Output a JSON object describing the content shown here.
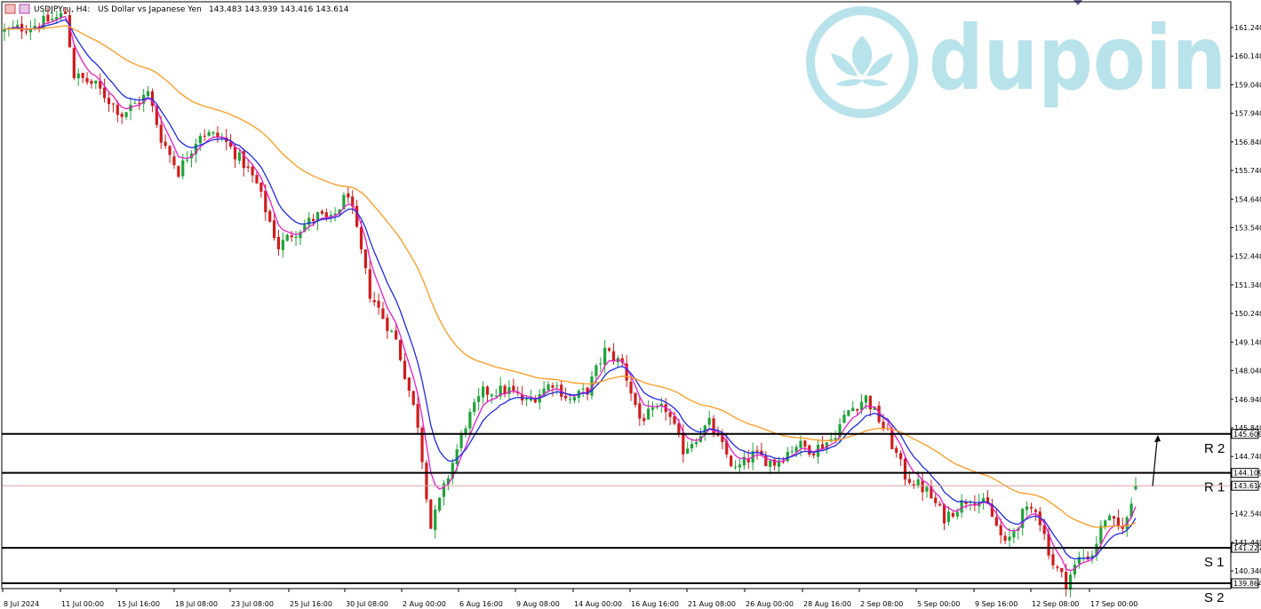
{
  "header": {
    "symbol_label": "USDJPYru, H4:",
    "description": "US Dollar vs Japanese Yen",
    "ohlc": "143.483 143.939 143.416 143.614"
  },
  "watermark": {
    "brand_text": "dupoin"
  },
  "colors": {
    "bull": "#1fa33a",
    "bear": "#d01c1c",
    "ma_fast": "#e61ec7",
    "ma_mid": "#1e2be6",
    "ma_slow": "#ff9a1e",
    "level_line": "#000000",
    "current_price_line": "#d9a0a0",
    "watermark": "#b9e3ea"
  },
  "chart_data": {
    "type": "candlestick",
    "symbol": "USDJPYru",
    "timeframe": "H4",
    "ylim": [
      139.2,
      162.2
    ],
    "y_ticks": [
      "161.240",
      "160.140",
      "159.040",
      "157.940",
      "156.840",
      "155.740",
      "154.640",
      "153.540",
      "152.440",
      "151.340",
      "150.240",
      "149.140",
      "148.040",
      "146.940",
      "145.840",
      "144.740",
      "143.614",
      "142.540",
      "141.440",
      "140.340",
      "139.864"
    ],
    "x_ticks": [
      "8 Jul 2024",
      "11 Jul 00:00",
      "15 Jul 16:00",
      "18 Jul 08:00",
      "23 Jul 08:00",
      "25 Jul 16:00",
      "30 Jul 08:00",
      "2 Aug 00:00",
      "6 Aug 16:00",
      "9 Aug 08:00",
      "14 Aug 00:00",
      "16 Aug 16:00",
      "21 Aug 08:00",
      "26 Aug 00:00",
      "28 Aug 16:00",
      "2 Sep 08:00",
      "5 Sep 00:00",
      "9 Sep 16:00",
      "12 Sep 08:00",
      "17 Sep 00:00"
    ],
    "path_keypoints": [
      {
        "bar": 0,
        "price": 161.1
      },
      {
        "bar": 6,
        "price": 161.3
      },
      {
        "bar": 12,
        "price": 161.6
      },
      {
        "bar": 14,
        "price": 161.8
      },
      {
        "bar": 16,
        "price": 159.4
      },
      {
        "bar": 21,
        "price": 159.0
      },
      {
        "bar": 27,
        "price": 157.9
      },
      {
        "bar": 33,
        "price": 158.7
      },
      {
        "bar": 36,
        "price": 157.0
      },
      {
        "bar": 40,
        "price": 155.7
      },
      {
        "bar": 45,
        "price": 157.2
      },
      {
        "bar": 50,
        "price": 157.0
      },
      {
        "bar": 55,
        "price": 156.0
      },
      {
        "bar": 58,
        "price": 155.2
      },
      {
        "bar": 63,
        "price": 152.8
      },
      {
        "bar": 66,
        "price": 153.3
      },
      {
        "bar": 72,
        "price": 154.0
      },
      {
        "bar": 75,
        "price": 153.8
      },
      {
        "bar": 79,
        "price": 154.9
      },
      {
        "bar": 84,
        "price": 151.0
      },
      {
        "bar": 90,
        "price": 149.2
      },
      {
        "bar": 95,
        "price": 146.0
      },
      {
        "bar": 98,
        "price": 142.0
      },
      {
        "bar": 101,
        "price": 143.5
      },
      {
        "bar": 103,
        "price": 144.5
      },
      {
        "bar": 106,
        "price": 146.0
      },
      {
        "bar": 110,
        "price": 147.2
      },
      {
        "bar": 116,
        "price": 147.3
      },
      {
        "bar": 120,
        "price": 146.8
      },
      {
        "bar": 126,
        "price": 147.6
      },
      {
        "bar": 130,
        "price": 146.9
      },
      {
        "bar": 134,
        "price": 147.3
      },
      {
        "bar": 138,
        "price": 148.8
      },
      {
        "bar": 142,
        "price": 148.3
      },
      {
        "bar": 146,
        "price": 146.2
      },
      {
        "bar": 152,
        "price": 146.6
      },
      {
        "bar": 156,
        "price": 145.0
      },
      {
        "bar": 162,
        "price": 146.0
      },
      {
        "bar": 168,
        "price": 144.2
      },
      {
        "bar": 172,
        "price": 144.8
      },
      {
        "bar": 177,
        "price": 144.5
      },
      {
        "bar": 182,
        "price": 145.2
      },
      {
        "bar": 186,
        "price": 145.0
      },
      {
        "bar": 190,
        "price": 145.4
      },
      {
        "bar": 194,
        "price": 146.5
      },
      {
        "bar": 198,
        "price": 147.0
      },
      {
        "bar": 203,
        "price": 145.6
      },
      {
        "bar": 207,
        "price": 144.0
      },
      {
        "bar": 212,
        "price": 143.4
      },
      {
        "bar": 216,
        "price": 142.4
      },
      {
        "bar": 222,
        "price": 143.2
      },
      {
        "bar": 226,
        "price": 142.8
      },
      {
        "bar": 230,
        "price": 141.3
      },
      {
        "bar": 234,
        "price": 142.5
      },
      {
        "bar": 237,
        "price": 142.8
      },
      {
        "bar": 241,
        "price": 140.6
      },
      {
        "bar": 244,
        "price": 139.9
      },
      {
        "bar": 247,
        "price": 140.8
      },
      {
        "bar": 250,
        "price": 141.0
      },
      {
        "bar": 253,
        "price": 142.4
      },
      {
        "bar": 256,
        "price": 142.0
      },
      {
        "bar": 258,
        "price": 142.3
      },
      {
        "bar": 260,
        "price": 143.6
      }
    ],
    "levels": [
      {
        "name": "R 2",
        "price": 145.609,
        "tag": "145.609"
      },
      {
        "name": "R 1",
        "price": 144.109,
        "tag": "144.109"
      },
      {
        "name": "S 1",
        "price": 141.227,
        "tag": "141.227"
      },
      {
        "name": "S 2",
        "price": 139.864,
        "tag": "139.864"
      }
    ],
    "current_price": {
      "price": 143.614,
      "tag": "143.614"
    },
    "arrow": {
      "from_price": 143.6,
      "to_price": 145.5,
      "direction": "up"
    },
    "moving_averages": [
      {
        "color_key": "ma_fast",
        "period": 5
      },
      {
        "color_key": "ma_mid",
        "period": 10
      },
      {
        "color_key": "ma_slow",
        "period": 40
      }
    ]
  }
}
